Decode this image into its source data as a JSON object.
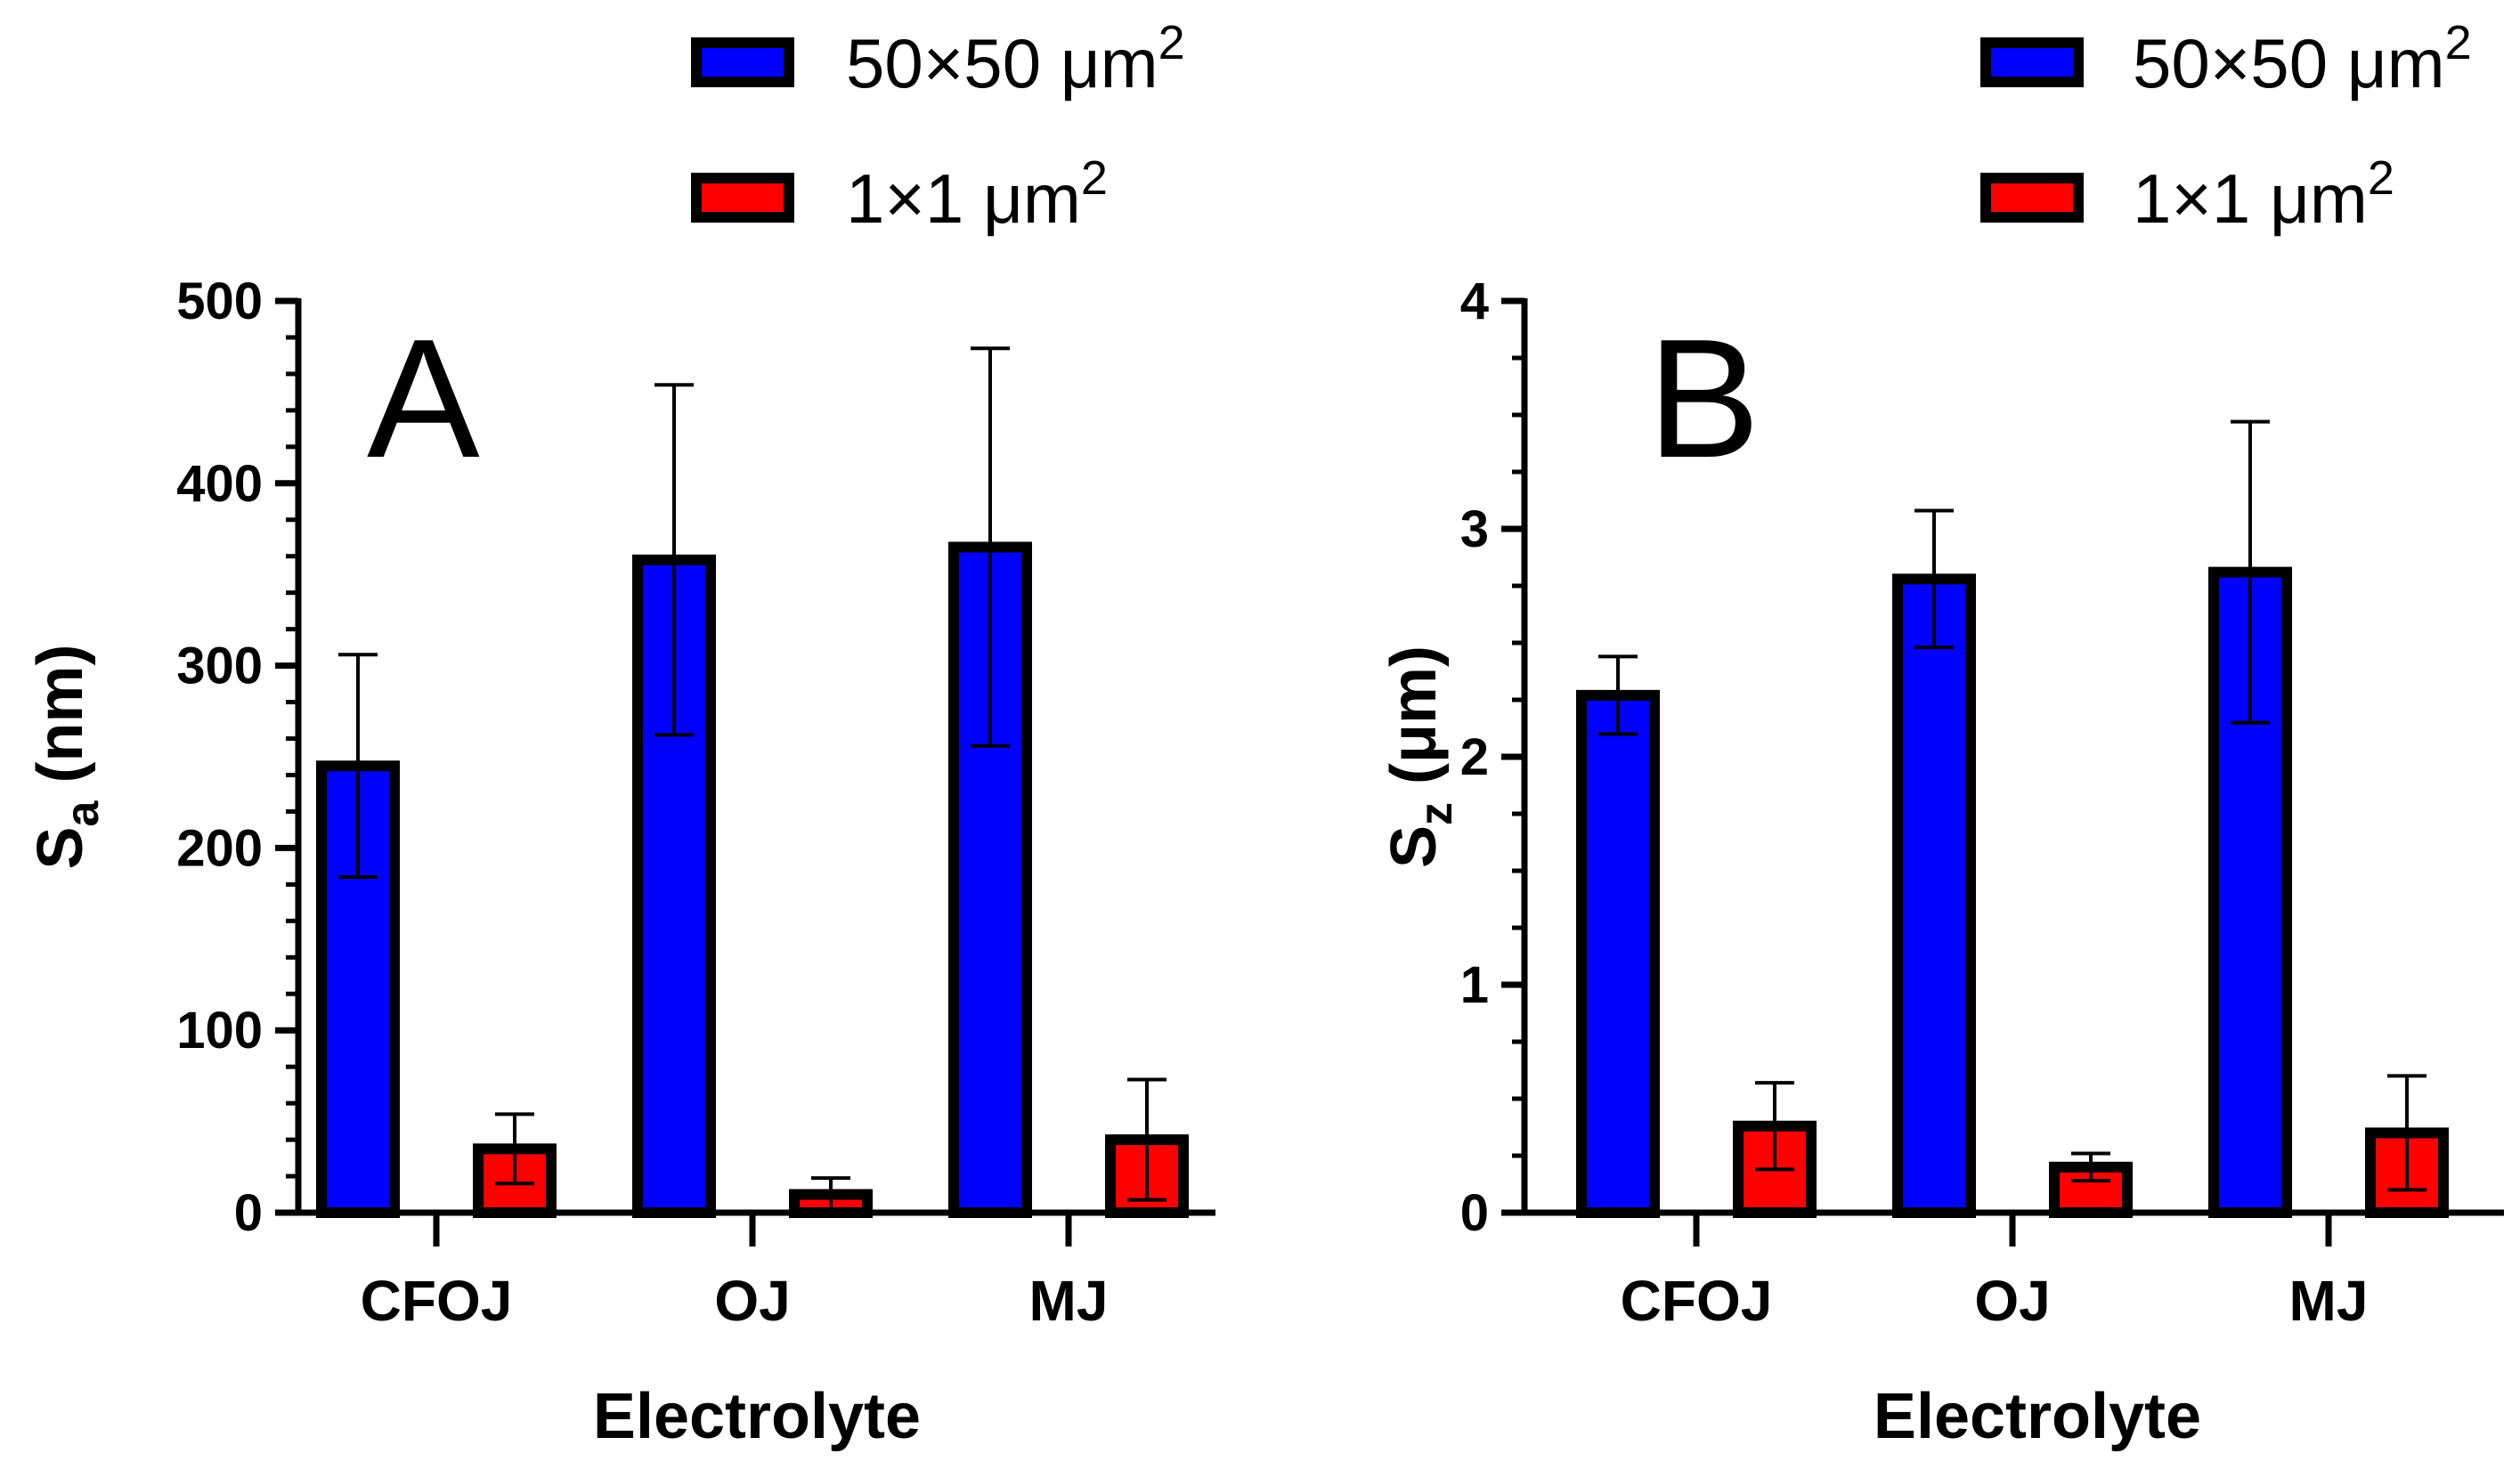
{
  "colors": {
    "series_a": "#0000ff",
    "series_b": "#ff0000",
    "outline": "#000000"
  },
  "chart_data": [
    {
      "type": "bar",
      "panel_letter": "A",
      "categories": [
        "CFOJ",
        "OJ",
        "MJ"
      ],
      "series": [
        {
          "name": "50×50 μm²",
          "label_base": "50×50 μm",
          "label_sup": "2",
          "color": "#0000ff",
          "values": [
            245,
            358,
            365
          ],
          "error": [
            61,
            96,
            109
          ]
        },
        {
          "name": "1×1 μm²",
          "label_base": "1×1 μm",
          "label_sup": "2",
          "color": "#ff0000",
          "values": [
            35,
            10,
            40
          ],
          "error": [
            19,
            9,
            33
          ]
        }
      ],
      "xlabel": "Electrolyte",
      "ylabel": {
        "base": "S",
        "sub": "a",
        "unit": " (nm)"
      },
      "ylim": [
        0,
        500
      ],
      "yticks": [
        0,
        100,
        200,
        300,
        400,
        500
      ],
      "ytick_labels": [
        "0",
        "100",
        "200",
        "300",
        "400",
        "500"
      ],
      "legend": "top-right"
    },
    {
      "type": "bar",
      "panel_letter": "B",
      "categories": [
        "CFOJ",
        "OJ",
        "MJ"
      ],
      "series": [
        {
          "name": "50×50 μm²",
          "label_base": "50×50 μm",
          "label_sup": "2",
          "color": "#0000ff",
          "values": [
            2.27,
            2.78,
            2.81
          ],
          "error": [
            0.17,
            0.3,
            0.66
          ]
        },
        {
          "name": "1×1 μm²",
          "label_base": "1×1 μm",
          "label_sup": "2",
          "color": "#ff0000",
          "values": [
            0.38,
            0.2,
            0.35
          ],
          "error": [
            0.19,
            0.06,
            0.25
          ]
        }
      ],
      "xlabel": "Electrolyte",
      "ylabel": {
        "base": "S",
        "sub": "z",
        "unit": " (μm)"
      },
      "ylim": [
        0,
        4
      ],
      "yticks": [
        0,
        1,
        2,
        3,
        4
      ],
      "ytick_labels": [
        "0",
        "1",
        "2",
        "3",
        "4"
      ],
      "legend": "top-right"
    }
  ]
}
